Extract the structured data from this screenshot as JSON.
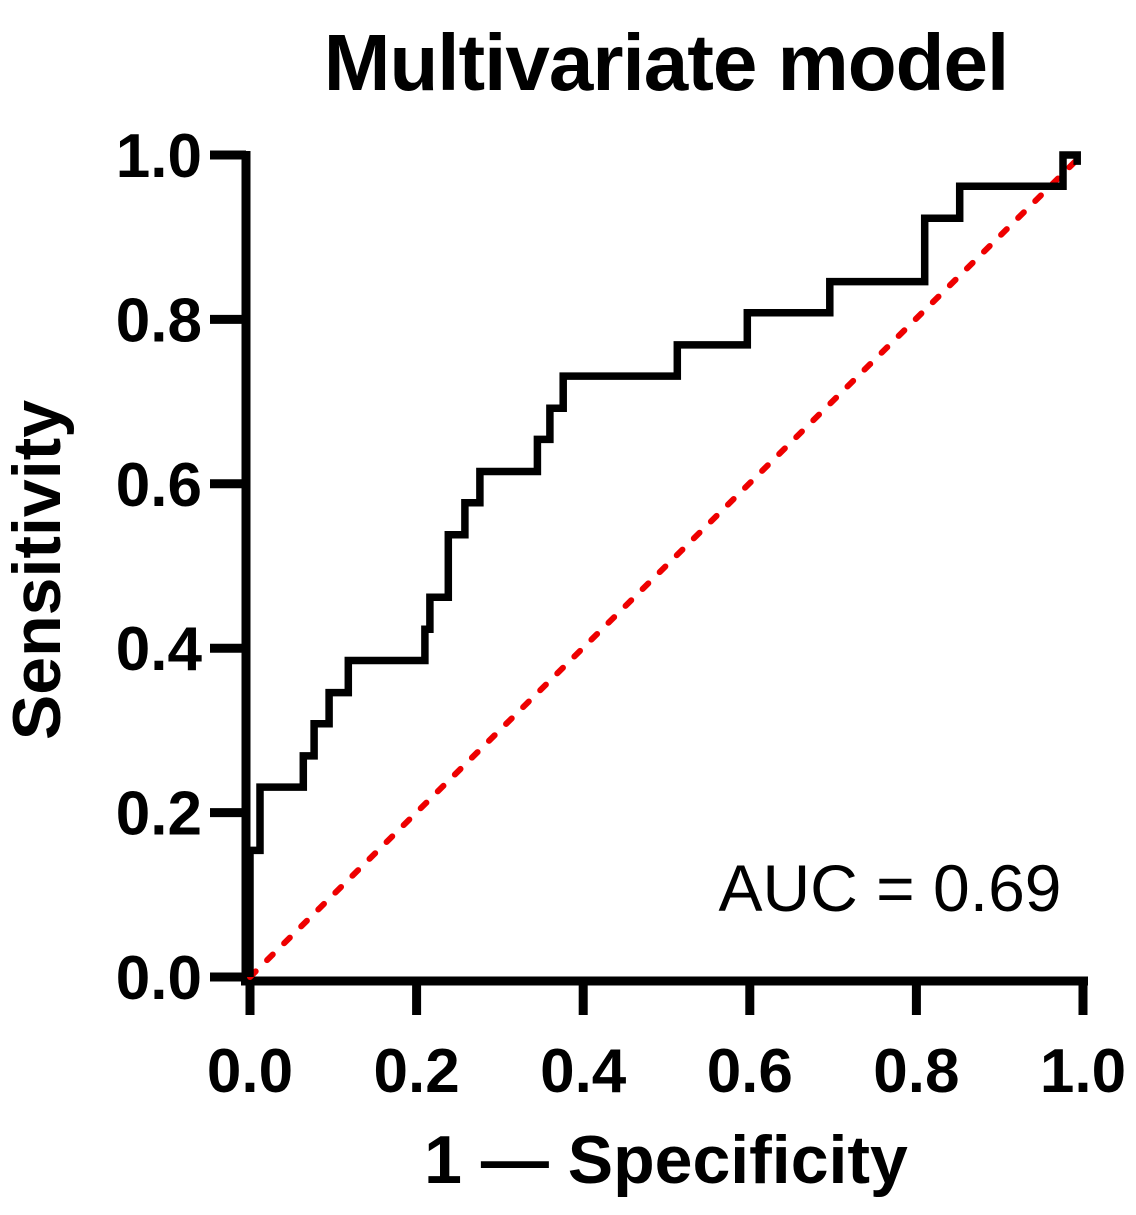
{
  "page": {
    "background": "#ffffff"
  },
  "chart_data": {
    "type": "line",
    "subtype": "roc-curve",
    "title": "Multivariate model",
    "xlabel": "1 — Specificity",
    "ylabel": "Sensitivity",
    "xlim": [
      0,
      1
    ],
    "ylim": [
      0,
      1
    ],
    "grid": false,
    "legend": "none",
    "axis_color": "#000000",
    "x_ticks": {
      "values": [
        0,
        0.2,
        0.4,
        0.6,
        0.8,
        1.0
      ],
      "labels": [
        "0.0",
        "0.2",
        "0.4",
        "0.6",
        "0.8",
        "1.0"
      ]
    },
    "y_ticks": {
      "values": [
        0,
        0.2,
        0.4,
        0.6,
        0.8,
        1.0
      ],
      "labels": [
        "0.0",
        "0.2",
        "0.4",
        "0.6",
        "0.8",
        "1.0"
      ]
    },
    "annotations": [
      {
        "text": "AUC = 0.69",
        "x": 0.768,
        "y": 0.08
      }
    ],
    "series": [
      {
        "name": "ROC curve",
        "type": "step",
        "color": "#000000",
        "line_width": 7.5,
        "points": [
          [
            0,
            0
          ],
          [
            0,
            0.154
          ],
          [
            0.012,
            0.154
          ],
          [
            0.012,
            0.231
          ],
          [
            0.064,
            0.231
          ],
          [
            0.064,
            0.269
          ],
          [
            0.077,
            0.269
          ],
          [
            0.077,
            0.308
          ],
          [
            0.095,
            0.308
          ],
          [
            0.095,
            0.346
          ],
          [
            0.118,
            0.346
          ],
          [
            0.118,
            0.385
          ],
          [
            0.21,
            0.385
          ],
          [
            0.21,
            0.423
          ],
          [
            0.216,
            0.423
          ],
          [
            0.216,
            0.462
          ],
          [
            0.238,
            0.462
          ],
          [
            0.238,
            0.538
          ],
          [
            0.258,
            0.538
          ],
          [
            0.258,
            0.577
          ],
          [
            0.276,
            0.577
          ],
          [
            0.276,
            0.615
          ],
          [
            0.345,
            0.615
          ],
          [
            0.345,
            0.654
          ],
          [
            0.36,
            0.654
          ],
          [
            0.36,
            0.692
          ],
          [
            0.376,
            0.692
          ],
          [
            0.376,
            0.731
          ],
          [
            0.513,
            0.731
          ],
          [
            0.513,
            0.769
          ],
          [
            0.597,
            0.769
          ],
          [
            0.597,
            0.808
          ],
          [
            0.696,
            0.808
          ],
          [
            0.696,
            0.846
          ],
          [
            0.81,
            0.846
          ],
          [
            0.81,
            0.923
          ],
          [
            0.852,
            0.923
          ],
          [
            0.852,
            0.962
          ],
          [
            0.976,
            0.962
          ],
          [
            0.976,
            1.0
          ],
          [
            0.993,
            1.0
          ],
          [
            0.993,
            0.988
          ]
        ]
      },
      {
        "name": "chance reference line",
        "type": "line",
        "style": "dashed",
        "color": "#ee0000",
        "line_width": 6,
        "points": [
          [
            0,
            0
          ],
          [
            0.994,
            0.9955
          ]
        ]
      }
    ]
  }
}
